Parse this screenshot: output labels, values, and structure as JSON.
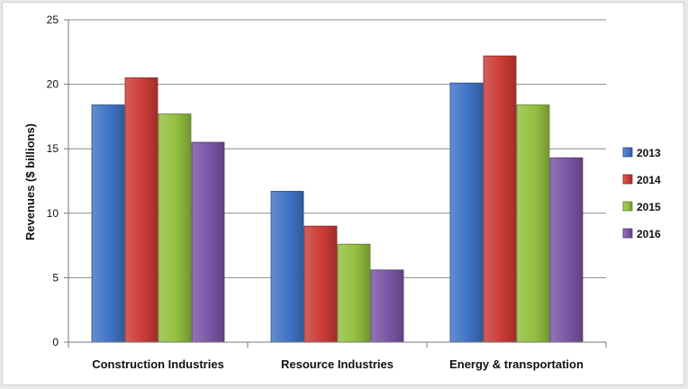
{
  "chart_data": {
    "type": "bar",
    "title": "",
    "xlabel": "",
    "ylabel": "Revenues ($ billions)",
    "ylim": [
      0,
      25
    ],
    "yticks": [
      0,
      5,
      10,
      15,
      20,
      25
    ],
    "grid": true,
    "legend_position": "right",
    "categories": [
      "Construction Industries",
      "Resource Industries",
      "Energy & transportation"
    ],
    "series": [
      {
        "name": "2013",
        "color": "#3f74c6",
        "values": [
          18.4,
          11.7,
          20.1
        ]
      },
      {
        "name": "2014",
        "color": "#cc3b36",
        "values": [
          20.5,
          9.0,
          22.2
        ]
      },
      {
        "name": "2015",
        "color": "#93c03f",
        "values": [
          17.7,
          7.6,
          18.4
        ]
      },
      {
        "name": "2016",
        "color": "#7b55a6",
        "values": [
          15.5,
          5.6,
          14.3
        ]
      }
    ]
  }
}
